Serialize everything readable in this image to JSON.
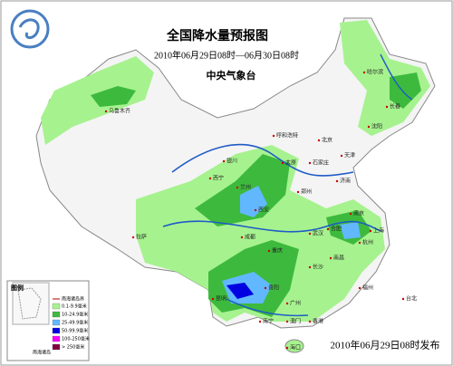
{
  "header": {
    "title": "全国降水量预报图",
    "period": "2010年06月29日08时—06月30日08时",
    "issuer": "中央气象台"
  },
  "footer": {
    "release": "2010年06月29日08时发布"
  },
  "legend": {
    "title": "图例",
    "line_item": "南海诸岛界",
    "items": [
      "0.1-9.9毫米",
      "10-24.9毫米",
      "25-49.9毫米",
      "50-99.9毫米",
      "100-250毫米",
      "> 250毫米"
    ],
    "colors": [
      "#a6f28f",
      "#3dba3d",
      "#61b8ff",
      "#0000e1",
      "#fa00fa",
      "#800040"
    ],
    "inset_label": "南海诸岛"
  },
  "cities": [
    "乌鲁木齐",
    "哈尔滨",
    "长春",
    "沈阳",
    "呼和浩特",
    "北京",
    "天津",
    "石家庄",
    "太原",
    "济南",
    "银川",
    "西宁",
    "兰州",
    "郑州",
    "西安",
    "南京",
    "合肥",
    "上海",
    "杭州",
    "武汉",
    "成都",
    "重庆",
    "长沙",
    "南昌",
    "贵阳",
    "福州",
    "昆明",
    "南宁",
    "广州",
    "台北",
    "澳门",
    "香港",
    "海口",
    "拉萨"
  ]
}
